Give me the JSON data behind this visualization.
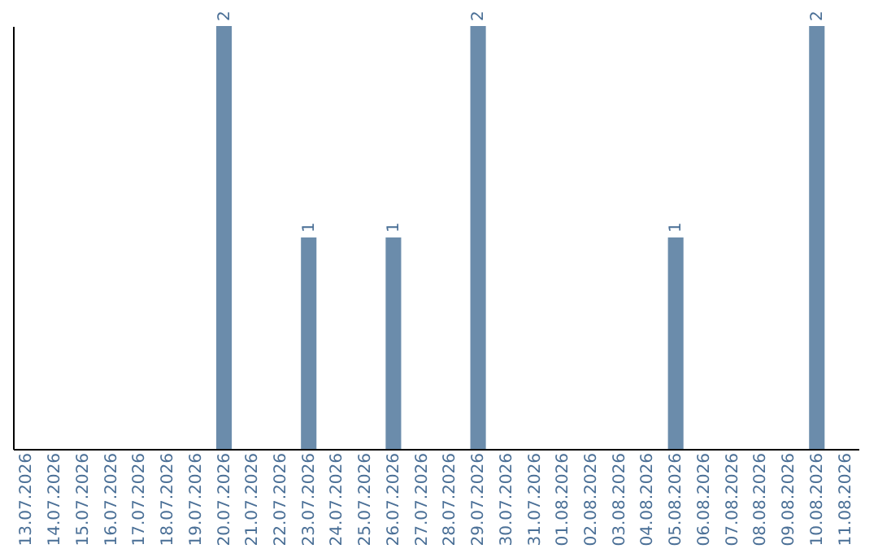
{
  "chart_data": {
    "type": "bar",
    "categories": [
      "13.07.2026",
      "14.07.2026",
      "15.07.2026",
      "16.07.2026",
      "17.07.2026",
      "18.07.2026",
      "19.07.2026",
      "20.07.2026",
      "21.07.2026",
      "22.07.2026",
      "23.07.2026",
      "24.07.2026",
      "25.07.2026",
      "26.07.2026",
      "27.07.2026",
      "28.07.2026",
      "29.07.2026",
      "30.07.2026",
      "31.07.2026",
      "01.08.2026",
      "02.08.2026",
      "03.08.2026",
      "04.08.2026",
      "05.08.2026",
      "06.08.2026",
      "07.08.2026",
      "08.08.2026",
      "09.08.2026",
      "10.08.2026",
      "11.08.2026"
    ],
    "values": [
      0,
      0,
      0,
      0,
      0,
      0,
      0,
      2,
      0,
      0,
      1,
      0,
      0,
      1,
      0,
      0,
      2,
      0,
      0,
      0,
      0,
      0,
      0,
      1,
      0,
      0,
      0,
      0,
      2,
      0
    ],
    "value_labels": [
      null,
      null,
      null,
      null,
      null,
      null,
      null,
      "2",
      null,
      null,
      "1",
      null,
      null,
      "1",
      null,
      null,
      "2",
      null,
      null,
      null,
      null,
      null,
      null,
      "1",
      null,
      null,
      null,
      null,
      "2",
      null
    ],
    "color": "#6b8cab",
    "tick_labels": "x"
  }
}
